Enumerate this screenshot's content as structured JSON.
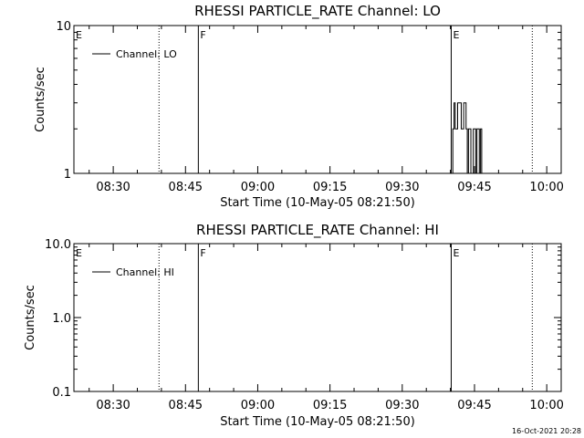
{
  "footer": {
    "timestamp": "16-Oct-2021 20:28"
  },
  "chart_data": [
    {
      "type": "line",
      "title": "RHESSI PARTICLE_RATE Channel: LO",
      "xlabel": "Start Time (10-May-05 08:21:50)",
      "ylabel": "Counts/sec",
      "yscale": "log",
      "xlim": [
        "08:21:50",
        "10:03:00"
      ],
      "ylim": [
        1,
        10
      ],
      "xticks": [
        "08:30",
        "08:45",
        "09:00",
        "09:15",
        "09:30",
        "09:45",
        "10:00"
      ],
      "yticks": [
        {
          "value": 1,
          "label": "1"
        },
        {
          "value": 10,
          "label": "10"
        }
      ],
      "legend": {
        "label": "Channel: LO",
        "placement": "top-left"
      },
      "markers": [
        {
          "time": "08:21:50",
          "label": "E",
          "style": "solid"
        },
        {
          "time": "08:39:30",
          "label": "",
          "style": "dotted"
        },
        {
          "time": "08:47:40",
          "label": "F",
          "style": "solid"
        },
        {
          "time": "09:40:10",
          "label": "E",
          "style": "solid"
        },
        {
          "time": "09:57:00",
          "label": "",
          "style": "dotted"
        }
      ],
      "series": [
        {
          "x": [
            "09:40:00",
            "09:40:15",
            "09:40:30",
            "09:40:45",
            "09:41:00",
            "09:41:15",
            "09:41:30",
            "09:41:45",
            "09:42:00",
            "09:42:15",
            "09:42:30",
            "09:42:45",
            "09:43:00",
            "09:43:15",
            "09:43:30",
            "09:43:45",
            "09:44:00",
            "09:44:15",
            "09:44:30",
            "09:44:45",
            "09:45:00",
            "09:45:15",
            "09:45:30",
            "09:45:45",
            "09:46:00",
            "09:46:15",
            "09:46:30",
            "09:46:45",
            "09:47:00"
          ],
          "values": [
            1,
            1,
            2,
            3,
            2,
            2,
            3,
            3,
            3,
            2,
            2,
            3,
            3,
            2,
            1,
            2,
            2,
            1,
            1,
            2,
            2,
            1,
            2,
            2,
            1,
            2,
            1,
            1,
            1
          ]
        }
      ]
    },
    {
      "type": "line",
      "title": "RHESSI PARTICLE_RATE Channel: HI",
      "xlabel": "Start Time (10-May-05 08:21:50)",
      "ylabel": "Counts/sec",
      "yscale": "log",
      "xlim": [
        "08:21:50",
        "10:03:00"
      ],
      "ylim": [
        0.1,
        10
      ],
      "xticks": [
        "08:30",
        "08:45",
        "09:00",
        "09:15",
        "09:30",
        "09:45",
        "10:00"
      ],
      "yticks": [
        {
          "value": 0.1,
          "label": "0.1"
        },
        {
          "value": 1,
          "label": "1.0"
        },
        {
          "value": 10,
          "label": "10.0"
        }
      ],
      "legend": {
        "label": "Channel: HI",
        "placement": "top-left"
      },
      "markers": [
        {
          "time": "08:21:50",
          "label": "E",
          "style": "solid"
        },
        {
          "time": "08:39:30",
          "label": "",
          "style": "dotted"
        },
        {
          "time": "08:47:40",
          "label": "F",
          "style": "solid"
        },
        {
          "time": "09:40:10",
          "label": "E",
          "style": "solid"
        },
        {
          "time": "09:57:00",
          "label": "",
          "style": "dotted"
        }
      ],
      "series": []
    }
  ]
}
